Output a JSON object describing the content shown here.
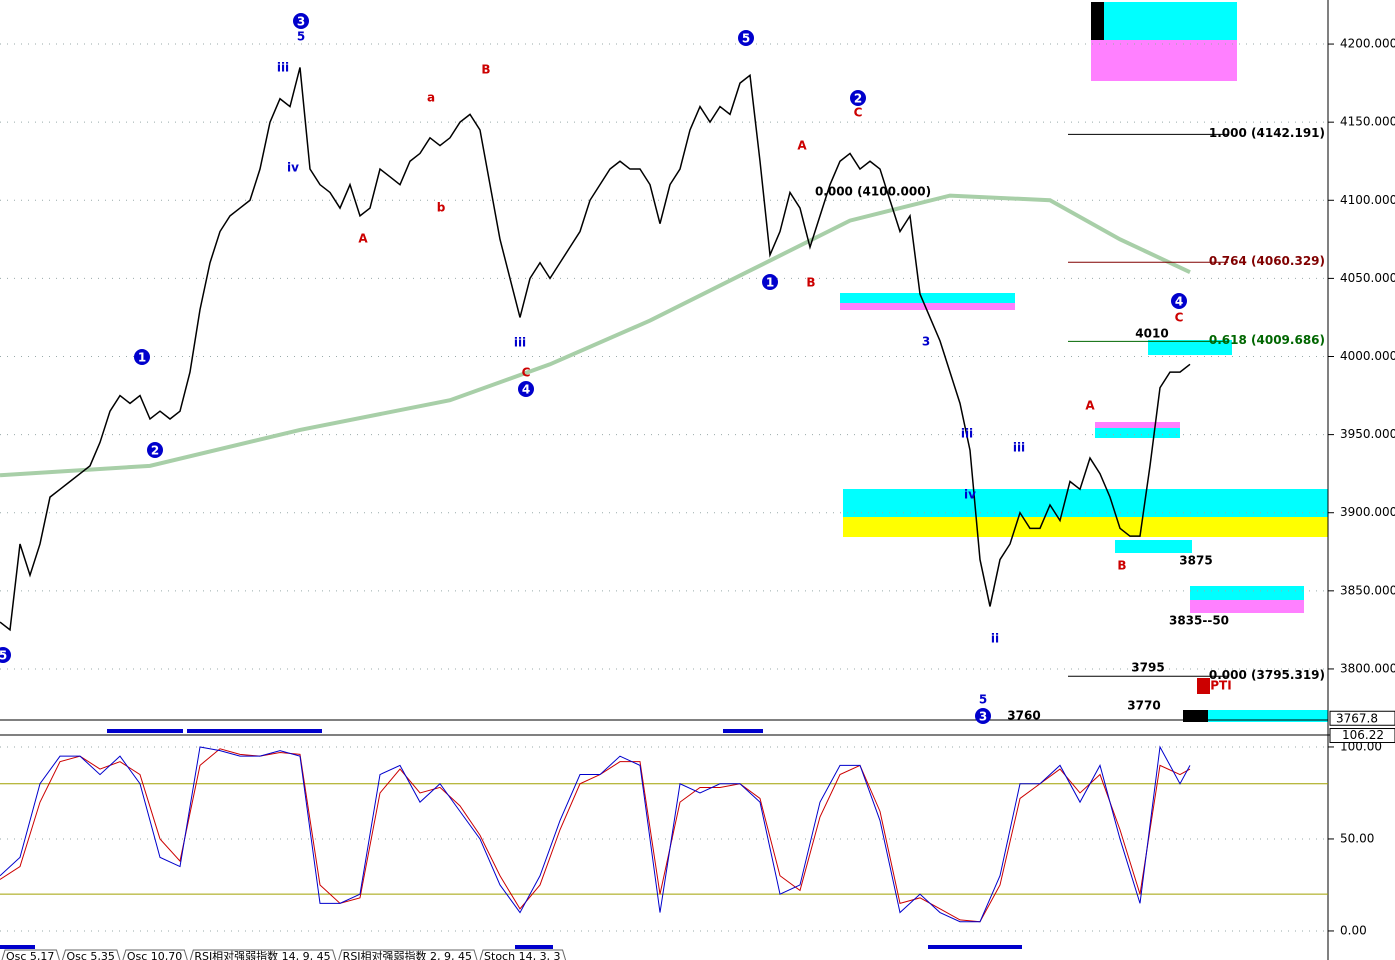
{
  "chart_data": {
    "type": "line",
    "main": {
      "ylim": [
        3768.6,
        4228.2
      ],
      "xlim": [
        0,
        133
      ],
      "yticks": [
        {
          "value": 3800,
          "label": "3800.000"
        },
        {
          "value": 3850,
          "label": "3850.000"
        },
        {
          "value": 3900,
          "label": "3900.000"
        },
        {
          "value": 3950,
          "label": "3950.000"
        },
        {
          "value": 4000,
          "label": "4000.000"
        },
        {
          "value": 4050,
          "label": "4050.000"
        },
        {
          "value": 4100,
          "label": "4100.000"
        },
        {
          "value": 4150,
          "label": "4150.000"
        },
        {
          "value": 4200,
          "label": "4200.000"
        }
      ],
      "grid": true,
      "last_price": {
        "value": 3767.8,
        "label": "3767.8"
      },
      "series": [
        {
          "name": "Close",
          "color": "#000000",
          "values": [
            3830,
            3825,
            3880,
            3860,
            3880,
            3910,
            3915,
            3920,
            3925,
            3930,
            3945,
            3965,
            3975,
            3970,
            3975,
            3960,
            3965,
            3960,
            3965,
            3990,
            4030,
            4060,
            4080,
            4090,
            4095,
            4100,
            4120,
            4150,
            4165,
            4160,
            4185,
            4120,
            4110,
            4105,
            4095,
            4110,
            4090,
            4095,
            4120,
            4115,
            4110,
            4125,
            4130,
            4140,
            4135,
            4140,
            4150,
            4155,
            4145,
            4110,
            4075,
            4050,
            4025,
            4050,
            4060,
            4050,
            4060,
            4070,
            4080,
            4100,
            4110,
            4120,
            4125,
            4120,
            4120,
            4110,
            4085,
            4110,
            4120,
            4145,
            4160,
            4150,
            4160,
            4155,
            4175,
            4180,
            4125,
            4065,
            4080,
            4105,
            4095,
            4070,
            4090,
            4110,
            4125,
            4130,
            4120,
            4125,
            4120,
            4100,
            4080,
            4090,
            4040,
            4025,
            4010,
            3990,
            3970,
            3940,
            3870,
            3840,
            3870,
            3880,
            3900,
            3890,
            3890,
            3905,
            3895,
            3920,
            3915,
            3935,
            3925,
            3910,
            3890,
            3885,
            3885,
            3930,
            3980,
            3990,
            3990,
            3995
          ]
        }
      ],
      "moving_average": {
        "color": "#a8cfa8",
        "x": [
          0,
          15,
          30,
          45,
          55,
          65,
          75,
          85,
          95,
          105,
          112,
          119
        ],
        "values": [
          3924,
          3930,
          3953,
          3972,
          3995,
          4023,
          4055,
          4087,
          4103,
          4100,
          4075,
          4054
        ]
      },
      "fib_levels": [
        {
          "label": "1.000 (4142.191)",
          "value": 4142.191,
          "color": "#000000"
        },
        {
          "label": "0.764 (4060.329)",
          "value": 4060.329,
          "color": "#800000"
        },
        {
          "label": "0.618 (4009.686)",
          "value": 4009.686,
          "color": "#006600"
        },
        {
          "label": "0.000 (3795.319)",
          "value": 3795.319,
          "color": "#000000"
        }
      ],
      "annotations": [
        {
          "text": "3",
          "color": "#0000cc",
          "circled": true
        },
        {
          "text": "5",
          "color": "#0000cc",
          "circled": false
        },
        {
          "text": "iii",
          "color": "#0000cc",
          "circled": false
        },
        {
          "text": "5",
          "color": "#0000cc",
          "circled": true
        },
        {
          "text": "2",
          "color": "#0000cc",
          "circled": true
        },
        {
          "text": "C",
          "color": "#cc0000",
          "circled": false
        },
        {
          "text": "4",
          "color": "#0000cc",
          "circled": true
        },
        {
          "text": "C",
          "color": "#cc0000",
          "circled": false
        },
        {
          "text": "1",
          "color": "#0000cc",
          "circled": true
        },
        {
          "text": "2",
          "color": "#0000cc",
          "circled": true
        },
        {
          "text": "4",
          "color": "#0000cc",
          "circled": true
        },
        {
          "text": "C",
          "color": "#cc0000",
          "circled": false
        },
        {
          "text": "1",
          "color": "#0000cc",
          "circled": true
        },
        {
          "text": "B",
          "color": "#cc0000",
          "circled": false
        },
        {
          "text": "3",
          "color": "#0000cc",
          "circled": true
        },
        {
          "text": "5",
          "color": "#0000cc",
          "circled": false
        },
        {
          "text": "A",
          "color": "#cc0000",
          "circled": false
        },
        {
          "text": "a",
          "color": "#cc0000",
          "circled": false
        },
        {
          "text": "B",
          "color": "#cc0000",
          "circled": false
        },
        {
          "text": "b",
          "color": "#cc0000",
          "circled": false
        },
        {
          "text": "A",
          "color": "#cc0000",
          "circled": false
        },
        {
          "text": "A",
          "color": "#cc0000",
          "circled": false
        },
        {
          "text": "B",
          "color": "#cc0000",
          "circled": false
        },
        {
          "text": "5",
          "color": "#0000cc",
          "circled": true
        },
        {
          "text": "iii",
          "color": "#0000cc",
          "circled": false
        },
        {
          "text": "iv",
          "color": "#0000cc",
          "circled": false
        },
        {
          "text": "iii",
          "color": "#0000cc",
          "circled": false
        },
        {
          "text": "ii",
          "color": "#0000cc",
          "circled": false
        },
        {
          "text": "iii",
          "color": "#0000cc",
          "circled": false
        },
        {
          "text": "iv",
          "color": "#0000cc",
          "circled": false
        },
        {
          "text": "3",
          "color": "#0000cc",
          "circled": false
        },
        {
          "text": "4010",
          "color": "#000000",
          "circled": false
        },
        {
          "text": "3875",
          "color": "#000000",
          "circled": false
        },
        {
          "text": "3835--50",
          "color": "#000000",
          "circled": false
        },
        {
          "text": "3795",
          "color": "#000000",
          "circled": false
        },
        {
          "text": "3770",
          "color": "#000000",
          "circled": false
        },
        {
          "text": "3760",
          "color": "#000000",
          "circled": false
        },
        {
          "text": "0.000 (4100.000)",
          "color": "#000000",
          "circled": false
        },
        {
          "text": "PTI",
          "color": "#cc0000",
          "circled": false
        }
      ]
    },
    "oscillator": {
      "ylim": [
        -14.7,
        106.5
      ],
      "yticks": [
        {
          "value": 0,
          "label": "0.00"
        },
        {
          "value": 50,
          "label": "50.00"
        },
        {
          "value": 100,
          "label": "100.00"
        }
      ],
      "levels": [
        20,
        80
      ],
      "top_label": {
        "value": 106.22,
        "label": "106.22"
      },
      "x": [
        0,
        2,
        4,
        6,
        8,
        10,
        12,
        14,
        16,
        18,
        20,
        22,
        24,
        26,
        28,
        30,
        32,
        34,
        36,
        38,
        40,
        42,
        44,
        46,
        48,
        50,
        52,
        54,
        56,
        58,
        60,
        62,
        64,
        66,
        68,
        70,
        72,
        74,
        76,
        78,
        80,
        82,
        84,
        86,
        88,
        90,
        92,
        94,
        96,
        98,
        100,
        102,
        104,
        106,
        108,
        110,
        112,
        114,
        116,
        118,
        119
      ],
      "series": [
        {
          "name": "%K",
          "color": "#0000cc",
          "values": [
            30,
            40,
            80,
            95,
            95,
            85,
            95,
            80,
            40,
            35,
            100,
            98,
            95,
            95,
            98,
            95,
            15,
            15,
            20,
            85,
            90,
            70,
            80,
            65,
            50,
            25,
            10,
            30,
            60,
            85,
            85,
            95,
            90,
            10,
            80,
            75,
            80,
            80,
            70,
            20,
            25,
            70,
            90,
            90,
            60,
            10,
            20,
            10,
            5,
            5,
            30,
            80,
            80,
            90,
            70,
            90,
            50,
            15,
            100,
            80,
            90
          ]
        },
        {
          "name": "%D",
          "color": "#cc0000",
          "values": [
            28,
            35,
            70,
            92,
            95,
            88,
            92,
            85,
            50,
            38,
            90,
            99,
            96,
            95,
            97,
            96,
            25,
            15,
            18,
            75,
            88,
            75,
            78,
            68,
            52,
            30,
            12,
            25,
            55,
            80,
            85,
            92,
            92,
            20,
            70,
            78,
            78,
            80,
            72,
            30,
            22,
            62,
            85,
            90,
            65,
            15,
            18,
            12,
            6,
            5,
            25,
            72,
            80,
            88,
            75,
            85,
            55,
            20,
            90,
            85,
            88
          ]
        }
      ]
    },
    "tabs": [
      "Osc 5,17",
      "Osc 5,35",
      "Osc 10,70",
      "RSI相对强弱指数 14, 9, 45",
      "RSI相对强弱指数 2, 9, 45",
      "Stoch 14, 3, 3"
    ]
  }
}
